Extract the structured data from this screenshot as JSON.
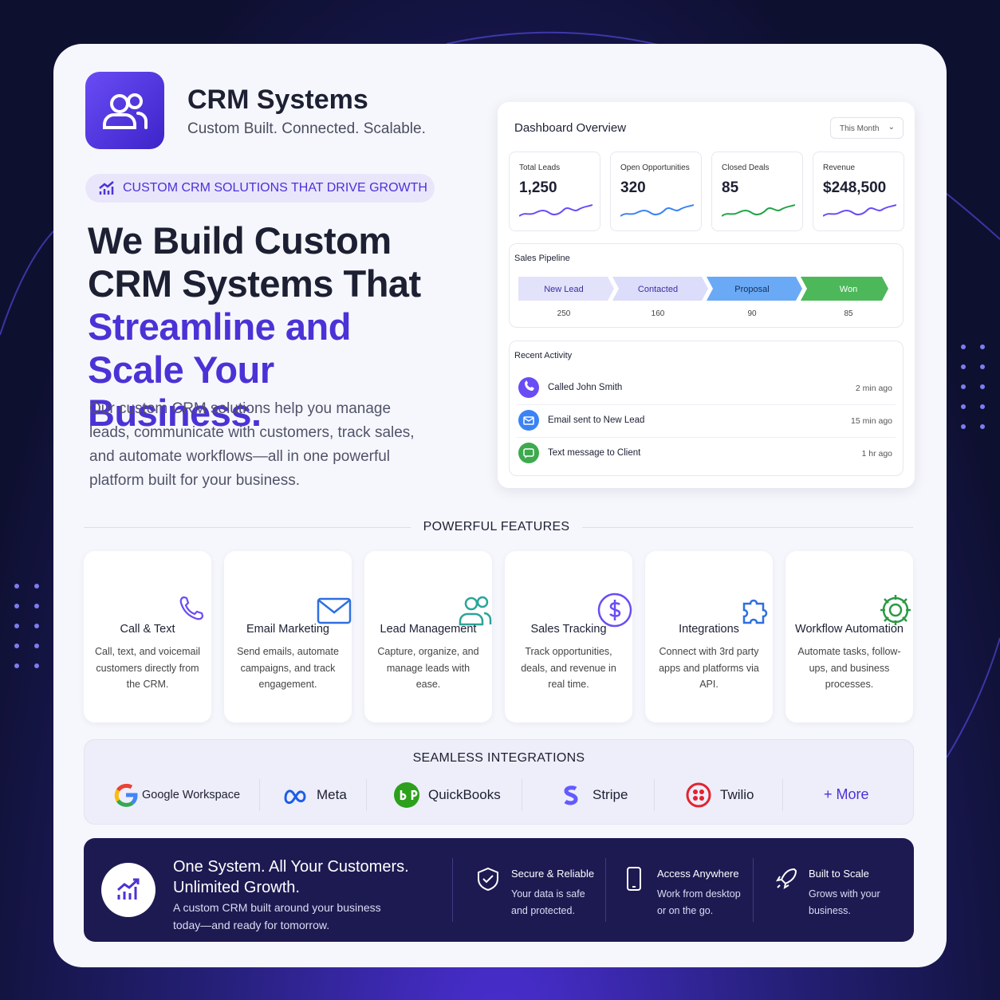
{
  "header": {
    "title": "CRM Systems",
    "tagline": "Custom Built. Connected. Scalable."
  },
  "badge": "CUSTOM CRM SOLUTIONS THAT DRIVE GROWTH",
  "headline": {
    "dark": "We Build Custom CRM Systems That",
    "accent": "Streamline and Scale Your Business."
  },
  "description": "Our custom CRM solutions help you manage leads, communicate with customers, track sales, and automate workflows—all in one powerful platform built for your business.",
  "dashboard": {
    "title": "Dashboard Overview",
    "period": "This Month",
    "kpis": [
      {
        "label": "Total Leads",
        "value": "1,250"
      },
      {
        "label": "Open Opportunities",
        "value": "320"
      },
      {
        "label": "Closed Deals",
        "value": "85"
      },
      {
        "label": "Revenue",
        "value": "$248,500"
      }
    ],
    "pipeline": {
      "title": "Sales Pipeline",
      "stages": [
        {
          "name": "New Lead",
          "count": 250
        },
        {
          "name": "Contacted",
          "count": 160
        },
        {
          "name": "Proposal",
          "count": 90
        },
        {
          "name": "Won",
          "count": 85
        }
      ]
    },
    "activity": {
      "title": "Recent Activity",
      "items": [
        {
          "text": "Called John Smith",
          "time": "2 min ago"
        },
        {
          "text": "Email sent to New Lead",
          "time": "15 min ago"
        },
        {
          "text": "Text message to Client",
          "time": "1 hr ago"
        }
      ]
    }
  },
  "features": {
    "title": "POWERFUL FEATURES",
    "items": [
      {
        "title": "Call & Text",
        "description": "Call, text, and voicemail customers directly from the CRM."
      },
      {
        "title": "Email Marketing",
        "description": "Send emails, automate campaigns, and track engagement."
      },
      {
        "title": "Lead Management",
        "description": "Capture, organize, and manage leads with ease."
      },
      {
        "title": "Sales Tracking",
        "description": "Track opportunities, deals, and revenue in real time."
      },
      {
        "title": "Integrations",
        "description": "Connect with 3rd party apps and platforms via API."
      },
      {
        "title": "Workflow Automation",
        "description": "Automate tasks, follow-ups, and business processes."
      }
    ]
  },
  "integrations": {
    "title": "SEAMLESS INTEGRATIONS",
    "items": [
      "Google Workspace",
      "Meta",
      "QuickBooks",
      "Stripe",
      "Twilio"
    ],
    "more": "+ More"
  },
  "footer": {
    "headline": "One System. All Your Customers. Unlimited Growth.",
    "text": "A custom CRM built around your business today—and ready for tomorrow.",
    "points": [
      {
        "title": "Secure & Reliable",
        "text": "Your data is safe and protected."
      },
      {
        "title": "Access Anywhere",
        "text": "Work from desktop or on the go."
      },
      {
        "title": "Built to Scale",
        "text": "Grows with your business."
      }
    ]
  }
}
